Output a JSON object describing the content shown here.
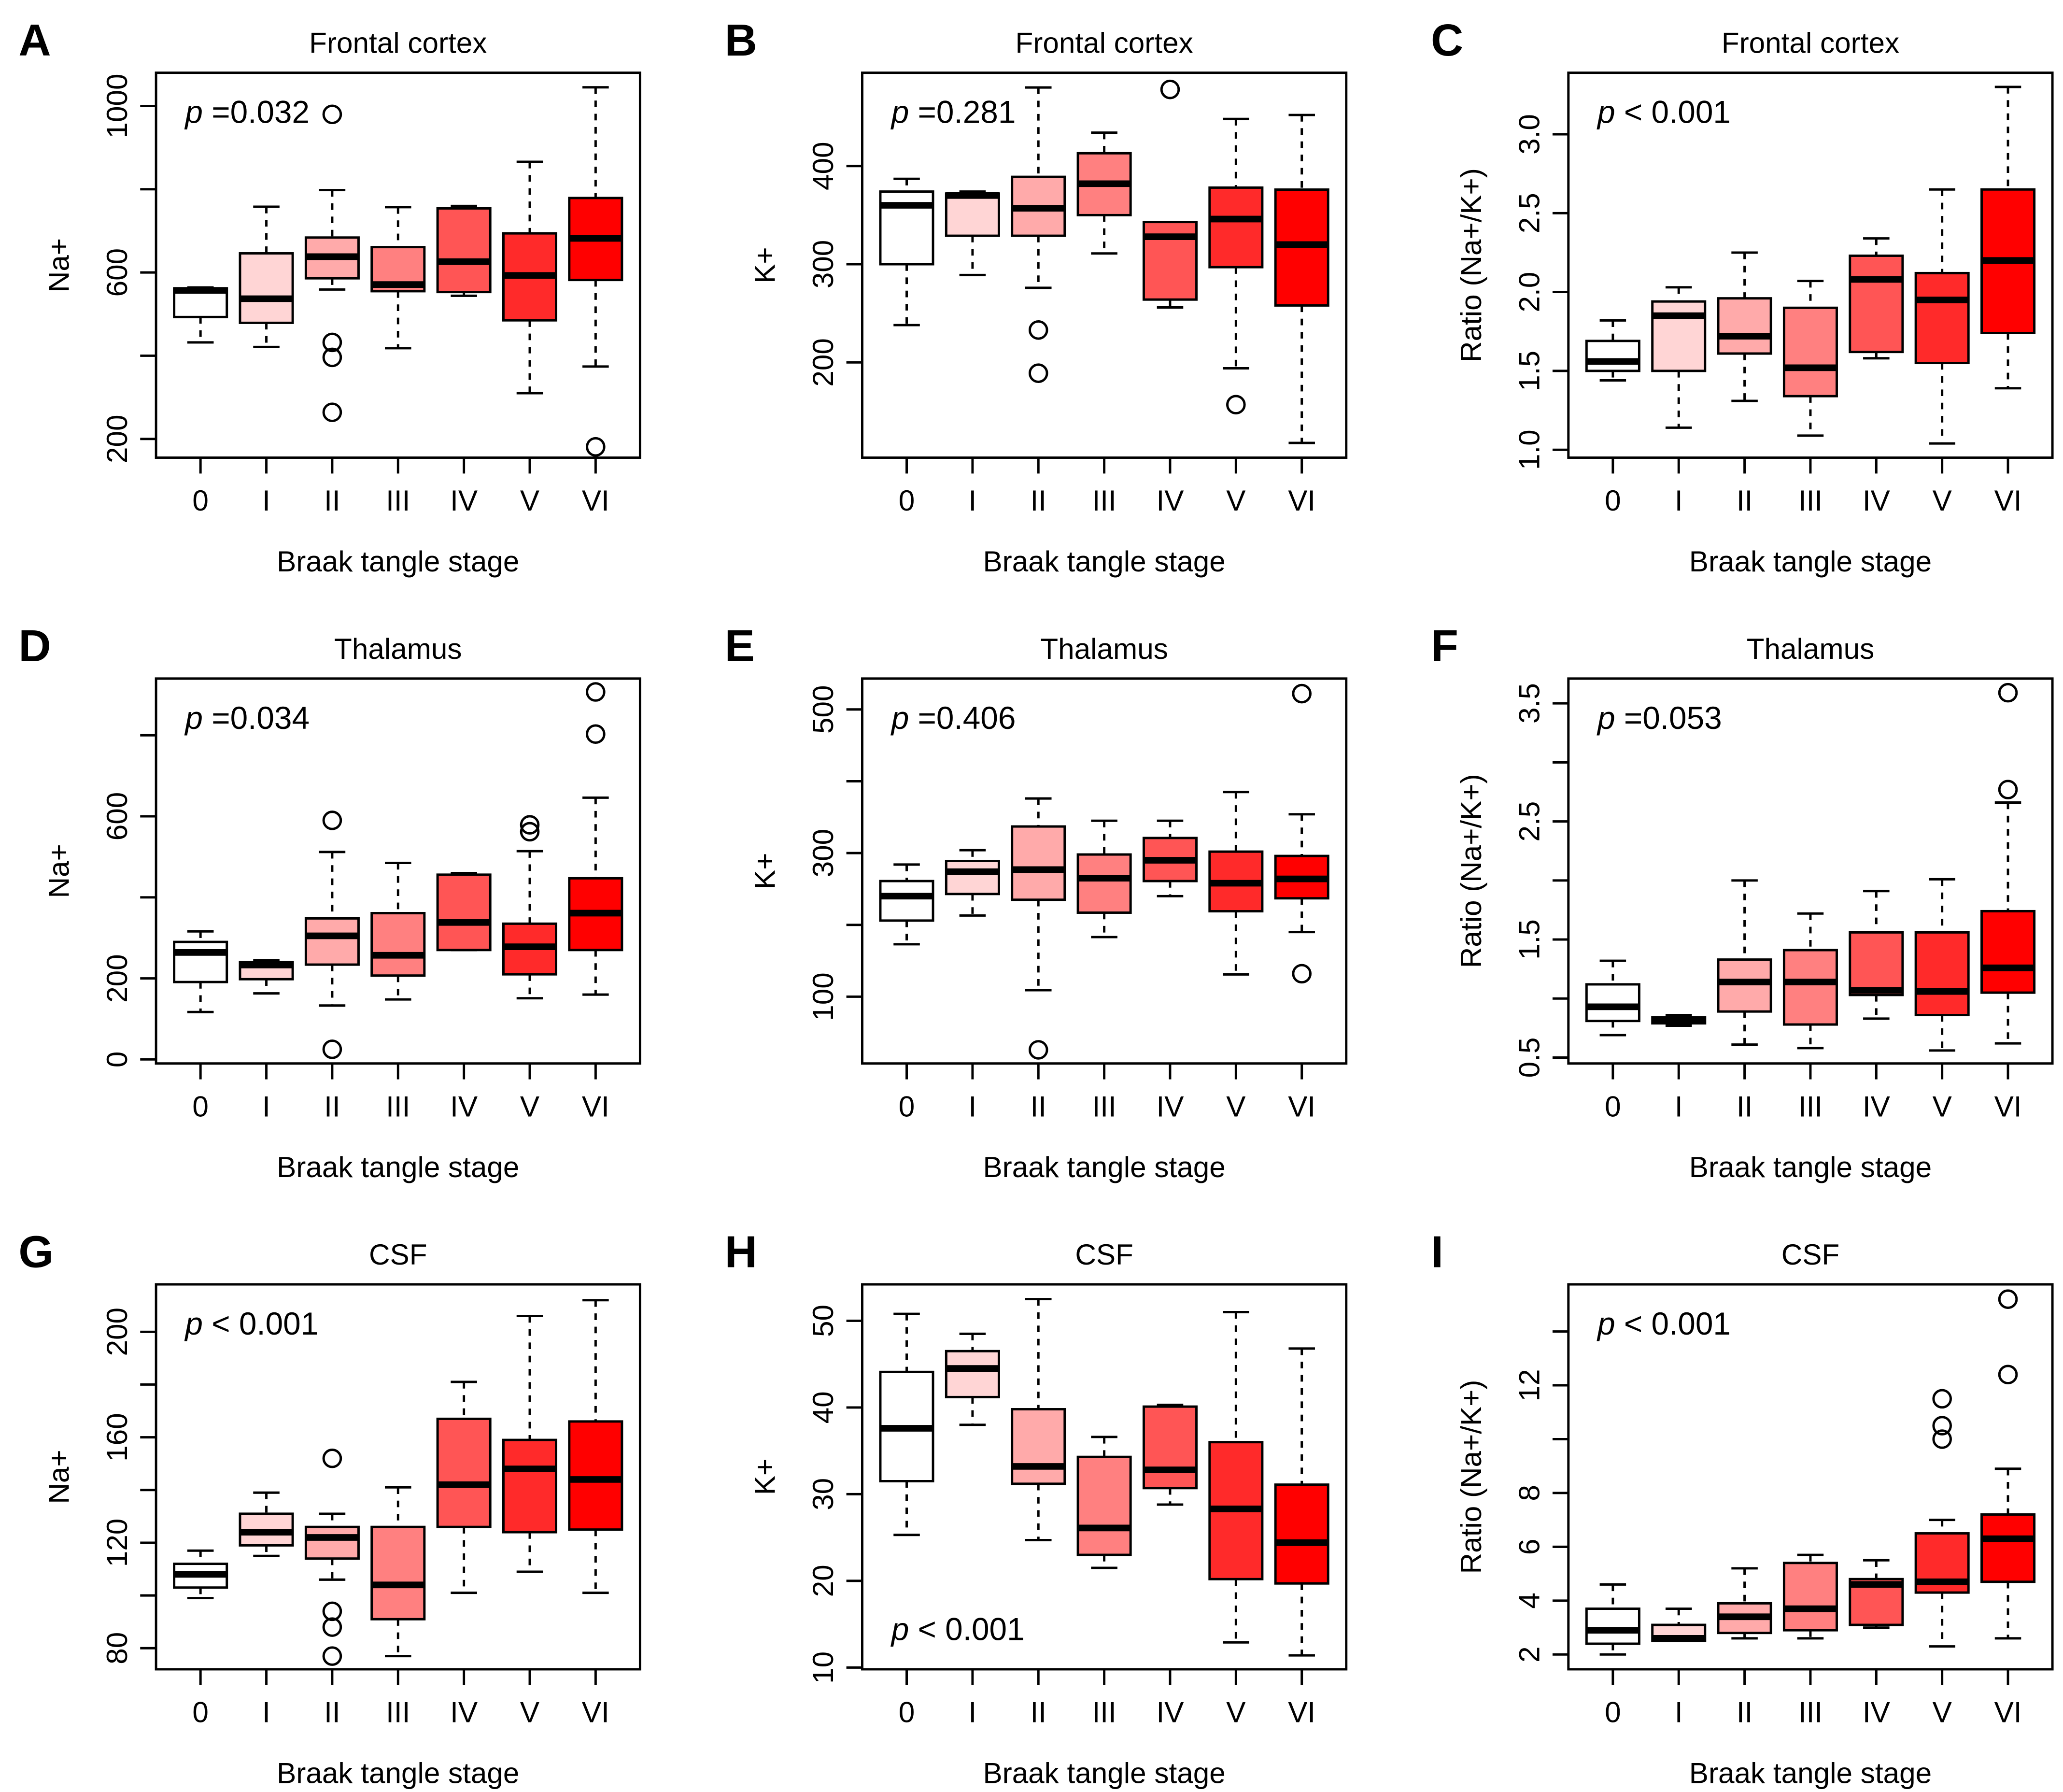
{
  "figure": {
    "stage_colors": [
      "#FFFFFF",
      "#FFD5D5",
      "#FFAAAA",
      "#FF8080",
      "#FF5555",
      "#FF2A2A",
      "#FF0000"
    ]
  },
  "chart_data": [
    {
      "panel": "A",
      "type": "boxplot",
      "title": "Frontal cortex",
      "xlabel": "Braak tangle stage",
      "ylabel": "Na+",
      "annotation": {
        "p_symbol": "p",
        "text": "=0.032",
        "position": "top-left"
      },
      "categories": [
        "0",
        "I",
        "II",
        "III",
        "IV",
        "V",
        "VI"
      ],
      "ylim": [
        155,
        1080
      ],
      "yticks": [
        200,
        400,
        600,
        800,
        1000
      ],
      "ytick_labels": [
        "200",
        "",
        "600",
        "",
        "1000"
      ],
      "boxes": [
        {
          "min": 432,
          "q1": 493,
          "median": 557,
          "q3": 562,
          "max": 564,
          "outliers": []
        },
        {
          "min": 421,
          "q1": 479,
          "median": 537,
          "q3": 646,
          "max": 758,
          "outliers": []
        },
        {
          "min": 559,
          "q1": 586,
          "median": 638,
          "q3": 684,
          "max": 798,
          "outliers": [
            980,
            432,
            396,
            264
          ]
        },
        {
          "min": 418,
          "q1": 555,
          "median": 571,
          "q3": 661,
          "max": 757,
          "outliers": []
        },
        {
          "min": 544,
          "q1": 553,
          "median": 626,
          "q3": 754,
          "max": 760,
          "outliers": []
        },
        {
          "min": 310,
          "q1": 485,
          "median": 593,
          "q3": 694,
          "max": 866,
          "outliers": []
        },
        {
          "min": 374,
          "q1": 582,
          "median": 682,
          "q3": 779,
          "max": 1045,
          "outliers": [
            181
          ]
        }
      ]
    },
    {
      "panel": "B",
      "type": "boxplot",
      "title": "Frontal cortex",
      "xlabel": "Braak tangle stage",
      "ylabel": "K+",
      "annotation": {
        "p_symbol": "p",
        "text": "=0.281",
        "position": "top-left"
      },
      "categories": [
        "0",
        "I",
        "II",
        "III",
        "IV",
        "V",
        "VI"
      ],
      "ylim": [
        103,
        495
      ],
      "yticks": [
        200,
        300,
        400
      ],
      "ytick_labels": [
        "200",
        "300",
        "400"
      ],
      "boxes": [
        {
          "min": 238,
          "q1": 300,
          "median": 360,
          "q3": 374,
          "max": 387,
          "outliers": []
        },
        {
          "min": 289,
          "q1": 329,
          "median": 370,
          "q3": 372,
          "max": 374,
          "outliers": []
        },
        {
          "min": 276,
          "q1": 329,
          "median": 357,
          "q3": 389,
          "max": 480,
          "outliers": [
            233,
            189
          ]
        },
        {
          "min": 311,
          "q1": 350,
          "median": 382,
          "q3": 413,
          "max": 434,
          "outliers": []
        },
        {
          "min": 256,
          "q1": 264,
          "median": 328,
          "q3": 343,
          "max": 343,
          "outliers": [
            478
          ]
        },
        {
          "min": 194,
          "q1": 297,
          "median": 346,
          "q3": 378,
          "max": 448,
          "outliers": [
            157
          ]
        },
        {
          "min": 118,
          "q1": 258,
          "median": 320,
          "q3": 376,
          "max": 452,
          "outliers": []
        }
      ]
    },
    {
      "panel": "C",
      "type": "boxplot",
      "title": "Frontal cortex",
      "xlabel": "Braak tangle stage",
      "ylabel": "Ratio (Na+/K+)",
      "annotation": {
        "p_symbol": "p",
        "text": "< 0.001",
        "position": "top-left"
      },
      "categories": [
        "0",
        "I",
        "II",
        "III",
        "IV",
        "V",
        "VI"
      ],
      "ylim": [
        0.95,
        3.39
      ],
      "yticks": [
        1.0,
        1.5,
        2.0,
        2.5,
        3.0
      ],
      "ytick_labels": [
        "1.0",
        "1.5",
        "2.0",
        "2.5",
        "3.0"
      ],
      "boxes": [
        {
          "min": 1.44,
          "q1": 1.5,
          "median": 1.56,
          "q3": 1.69,
          "max": 1.82,
          "outliers": []
        },
        {
          "min": 1.14,
          "q1": 1.5,
          "median": 1.85,
          "q3": 1.94,
          "max": 2.03,
          "outliers": []
        },
        {
          "min": 1.31,
          "q1": 1.61,
          "median": 1.72,
          "q3": 1.96,
          "max": 2.25,
          "outliers": []
        },
        {
          "min": 1.09,
          "q1": 1.34,
          "median": 1.52,
          "q3": 1.9,
          "max": 2.07,
          "outliers": []
        },
        {
          "min": 1.58,
          "q1": 1.62,
          "median": 2.08,
          "q3": 2.23,
          "max": 2.34,
          "outliers": []
        },
        {
          "min": 1.04,
          "q1": 1.55,
          "median": 1.95,
          "q3": 2.12,
          "max": 2.65,
          "outliers": []
        },
        {
          "min": 1.39,
          "q1": 1.74,
          "median": 2.2,
          "q3": 2.65,
          "max": 3.3,
          "outliers": []
        }
      ]
    },
    {
      "panel": "D",
      "type": "boxplot",
      "title": "Thalamus",
      "xlabel": "Braak tangle stage",
      "ylabel": "Na+",
      "annotation": {
        "p_symbol": "p",
        "text": "=0.034",
        "position": "top-left"
      },
      "categories": [
        "0",
        "I",
        "II",
        "III",
        "IV",
        "V",
        "VI"
      ],
      "ylim": [
        -10,
        940
      ],
      "yticks": [
        0,
        200,
        400,
        600,
        800
      ],
      "ytick_labels": [
        "0",
        "200",
        "",
        "600",
        ""
      ],
      "boxes": [
        {
          "min": 117,
          "q1": 191,
          "median": 264,
          "q3": 290,
          "max": 316,
          "outliers": []
        },
        {
          "min": 163,
          "q1": 198,
          "median": 233,
          "q3": 240,
          "max": 245,
          "outliers": []
        },
        {
          "min": 133,
          "q1": 234,
          "median": 305,
          "q3": 348,
          "max": 512,
          "outliers": [
            590,
            25
          ]
        },
        {
          "min": 148,
          "q1": 207,
          "median": 257,
          "q3": 361,
          "max": 485,
          "outliers": []
        },
        {
          "min": 270,
          "q1": 270,
          "median": 338,
          "q3": 456,
          "max": 460,
          "outliers": []
        },
        {
          "min": 151,
          "q1": 210,
          "median": 278,
          "q3": 335,
          "max": 514,
          "outliers": [
            579,
            562
          ]
        },
        {
          "min": 160,
          "q1": 270,
          "median": 361,
          "q3": 447,
          "max": 646,
          "outliers": [
            907,
            803
          ]
        }
      ]
    },
    {
      "panel": "E",
      "type": "boxplot",
      "title": "Thalamus",
      "xlabel": "Braak tangle stage",
      "ylabel": "K+",
      "annotation": {
        "p_symbol": "p",
        "text": "=0.406",
        "position": "top-left"
      },
      "categories": [
        "0",
        "I",
        "II",
        "III",
        "IV",
        "V",
        "VI"
      ],
      "ylim": [
        7,
        543
      ],
      "yticks": [
        100,
        200,
        300,
        400,
        500
      ],
      "ytick_labels": [
        "100",
        "",
        "300",
        "",
        "500"
      ],
      "boxes": [
        {
          "min": 173,
          "q1": 206,
          "median": 240,
          "q3": 261,
          "max": 284,
          "outliers": []
        },
        {
          "min": 213,
          "q1": 243,
          "median": 274,
          "q3": 289,
          "max": 304,
          "outliers": []
        },
        {
          "min": 109,
          "q1": 235,
          "median": 277,
          "q3": 337,
          "max": 376,
          "outliers": [
            26
          ]
        },
        {
          "min": 183,
          "q1": 217,
          "median": 265,
          "q3": 298,
          "max": 345,
          "outliers": []
        },
        {
          "min": 240,
          "q1": 261,
          "median": 290,
          "q3": 321,
          "max": 345,
          "outliers": []
        },
        {
          "min": 131,
          "q1": 219,
          "median": 258,
          "q3": 302,
          "max": 385,
          "outliers": []
        },
        {
          "min": 190,
          "q1": 237,
          "median": 264,
          "q3": 296,
          "max": 354,
          "outliers": [
            522,
            132
          ]
        }
      ]
    },
    {
      "panel": "F",
      "type": "boxplot",
      "title": "Thalamus",
      "xlabel": "Braak tangle stage",
      "ylabel": "Ratio (Na+/K+)",
      "annotation": {
        "p_symbol": "p",
        "text": "=0.053",
        "position": "top-left"
      },
      "categories": [
        "0",
        "I",
        "II",
        "III",
        "IV",
        "V",
        "VI"
      ],
      "ylim": [
        0.45,
        3.71
      ],
      "yticks": [
        0.5,
        1.0,
        1.5,
        2.0,
        2.5,
        3.0,
        3.5
      ],
      "ytick_labels": [
        "0.5",
        "",
        "1.5",
        "",
        "2.5",
        "",
        "3.5"
      ],
      "boxes": [
        {
          "min": 0.69,
          "q1": 0.81,
          "median": 0.93,
          "q3": 1.12,
          "max": 1.32,
          "outliers": []
        },
        {
          "min": 0.77,
          "q1": 0.79,
          "median": 0.81,
          "q3": 0.84,
          "max": 0.86,
          "outliers": []
        },
        {
          "min": 0.61,
          "q1": 0.89,
          "median": 1.14,
          "q3": 1.33,
          "max": 2.0,
          "outliers": []
        },
        {
          "min": 0.58,
          "q1": 0.78,
          "median": 1.14,
          "q3": 1.41,
          "max": 1.72,
          "outliers": []
        },
        {
          "min": 0.83,
          "q1": 1.03,
          "median": 1.07,
          "q3": 1.56,
          "max": 1.91,
          "outliers": []
        },
        {
          "min": 0.56,
          "q1": 0.86,
          "median": 1.06,
          "q3": 1.56,
          "max": 2.01,
          "outliers": []
        },
        {
          "min": 0.62,
          "q1": 1.05,
          "median": 1.26,
          "q3": 1.74,
          "max": 2.66,
          "outliers": [
            3.59,
            2.77
          ]
        }
      ]
    },
    {
      "panel": "G",
      "type": "boxplot",
      "title": "CSF",
      "xlabel": "Braak tangle stage",
      "ylabel": "Na+",
      "annotation": {
        "p_symbol": "p",
        "text": "< 0.001",
        "position": "top-left"
      },
      "categories": [
        "0",
        "I",
        "II",
        "III",
        "IV",
        "V",
        "VI"
      ],
      "ylim": [
        72,
        218
      ],
      "yticks": [
        80,
        100,
        120,
        140,
        160,
        180,
        200
      ],
      "ytick_labels": [
        "80",
        "",
        "120",
        "",
        "160",
        "",
        "200"
      ],
      "boxes": [
        {
          "min": 99,
          "q1": 103,
          "median": 108,
          "q3": 112,
          "max": 117,
          "outliers": []
        },
        {
          "min": 115,
          "q1": 119,
          "median": 124,
          "q3": 131,
          "max": 139,
          "outliers": []
        },
        {
          "min": 106,
          "q1": 114,
          "median": 122,
          "q3": 126,
          "max": 131,
          "outliers": [
            152,
            94,
            88,
            77
          ]
        },
        {
          "min": 77,
          "q1": 91,
          "median": 104,
          "q3": 126,
          "max": 141,
          "outliers": []
        },
        {
          "min": 101,
          "q1": 126,
          "median": 142,
          "q3": 167,
          "max": 181,
          "outliers": []
        },
        {
          "min": 109,
          "q1": 124,
          "median": 148,
          "q3": 159,
          "max": 206,
          "outliers": []
        },
        {
          "min": 101,
          "q1": 125,
          "median": 144,
          "q3": 166,
          "max": 212,
          "outliers": []
        }
      ]
    },
    {
      "panel": "H",
      "type": "boxplot",
      "title": "CSF",
      "xlabel": "Braak tangle stage",
      "ylabel": "K+",
      "annotation": {
        "p_symbol": "p",
        "text": "< 0.001",
        "position": "bottom-left"
      },
      "categories": [
        "0",
        "I",
        "II",
        "III",
        "IV",
        "V",
        "VI"
      ],
      "ylim": [
        9.8,
        54.2
      ],
      "yticks": [
        10,
        20,
        30,
        40,
        50
      ],
      "ytick_labels": [
        "10",
        "20",
        "30",
        "40",
        "50"
      ],
      "boxes": [
        {
          "min": 25.3,
          "q1": 31.5,
          "median": 37.6,
          "q3": 44.1,
          "max": 50.8,
          "outliers": []
        },
        {
          "min": 38.0,
          "q1": 41.2,
          "median": 44.5,
          "q3": 46.5,
          "max": 48.5,
          "outliers": []
        },
        {
          "min": 24.7,
          "q1": 31.2,
          "median": 33.2,
          "q3": 39.8,
          "max": 52.5,
          "outliers": []
        },
        {
          "min": 21.5,
          "q1": 23.0,
          "median": 26.1,
          "q3": 34.3,
          "max": 36.6,
          "outliers": []
        },
        {
          "min": 28.8,
          "q1": 30.7,
          "median": 32.8,
          "q3": 40.1,
          "max": 40.3,
          "outliers": []
        },
        {
          "min": 12.9,
          "q1": 20.2,
          "median": 28.3,
          "q3": 36.0,
          "max": 51.0,
          "outliers": []
        },
        {
          "min": 11.4,
          "q1": 19.7,
          "median": 24.4,
          "q3": 31.1,
          "max": 46.8,
          "outliers": []
        }
      ]
    },
    {
      "panel": "I",
      "type": "boxplot",
      "title": "CSF",
      "xlabel": "Braak tangle stage",
      "ylabel": "Ratio (Na+/K+)",
      "annotation": {
        "p_symbol": "p",
        "text": "< 0.001",
        "position": "top-left"
      },
      "categories": [
        "0",
        "I",
        "II",
        "III",
        "IV",
        "V",
        "VI"
      ],
      "ylim": [
        1.45,
        15.75
      ],
      "yticks": [
        2,
        4,
        6,
        8,
        10,
        12,
        14
      ],
      "ytick_labels": [
        "2",
        "4",
        "6",
        "8",
        "",
        "12",
        ""
      ],
      "boxes": [
        {
          "min": 2.0,
          "q1": 2.4,
          "median": 2.9,
          "q3": 3.7,
          "max": 4.6,
          "outliers": []
        },
        {
          "min": 2.5,
          "q1": 2.5,
          "median": 2.6,
          "q3": 3.1,
          "max": 3.7,
          "outliers": []
        },
        {
          "min": 2.6,
          "q1": 2.8,
          "median": 3.4,
          "q3": 3.9,
          "max": 5.2,
          "outliers": []
        },
        {
          "min": 2.6,
          "q1": 2.9,
          "median": 3.7,
          "q3": 5.4,
          "max": 5.7,
          "outliers": []
        },
        {
          "min": 3.0,
          "q1": 3.1,
          "median": 4.6,
          "q3": 4.8,
          "max": 5.5,
          "outliers": []
        },
        {
          "min": 2.3,
          "q1": 4.3,
          "median": 4.7,
          "q3": 6.5,
          "max": 7.0,
          "outliers": [
            11.5,
            10.5,
            10.0
          ]
        },
        {
          "min": 2.6,
          "q1": 4.7,
          "median": 6.3,
          "q3": 7.2,
          "max": 8.9,
          "outliers": [
            15.2,
            12.4
          ]
        }
      ]
    }
  ]
}
